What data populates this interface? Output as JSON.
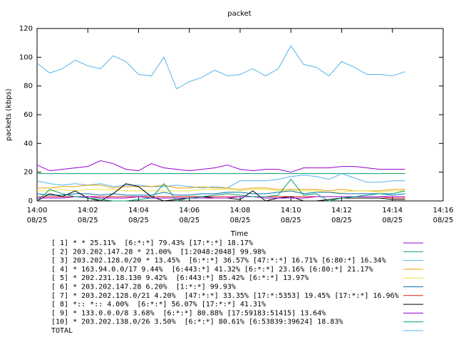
{
  "chart_data": {
    "type": "line",
    "title": "packet",
    "xlabel": "Time",
    "ylabel": "packets (kbps)",
    "x": [
      0,
      0.5,
      1,
      1.5,
      2,
      2.5,
      3,
      3.5,
      4,
      4.5,
      5,
      5.5,
      6,
      6.5,
      7,
      7.5,
      8,
      8.5,
      9,
      9.5,
      10,
      10.5,
      11,
      11.5,
      12,
      12.5,
      13,
      13.5,
      14,
      14.5
    ],
    "xlim": [
      0,
      16
    ],
    "xticks": [
      {
        "value": 0,
        "label": "14:00\n08/25"
      },
      {
        "value": 2,
        "label": "14:02\n08/25"
      },
      {
        "value": 4,
        "label": "14:04\n08/25"
      },
      {
        "value": 6,
        "label": "14:06\n08/25"
      },
      {
        "value": 8,
        "label": "14:08\n08/25"
      },
      {
        "value": 10,
        "label": "14:10\n08/25"
      },
      {
        "value": 12,
        "label": "14:12\n08/25"
      },
      {
        "value": 14,
        "label": "14:14\n08/25"
      },
      {
        "value": 16,
        "label": "14:16\n08/25"
      }
    ],
    "ylim": [
      0,
      120
    ],
    "yticks": [
      0,
      20,
      40,
      60,
      80,
      100,
      120
    ],
    "series": [
      {
        "name": "[ 1] * * 25.11%  [6:*:*] 79.43% [17:*:*] 18.17%",
        "color": "#9400d3",
        "values": [
          25,
          21,
          22,
          23,
          24,
          28,
          26,
          22,
          21,
          26,
          23,
          22,
          21,
          22,
          23,
          25,
          22,
          21,
          22,
          22,
          20,
          23,
          23,
          23,
          24,
          24,
          23,
          22,
          22,
          22
        ]
      },
      {
        "name": "[ 2] 203.202.147.28 * 21.00%  [1:2048:2048] 99.98%",
        "color": "#009e73",
        "values": [
          19,
          19,
          19,
          19,
          19,
          19,
          19,
          19,
          19,
          19,
          19,
          19,
          19,
          19,
          19,
          19,
          19,
          19,
          19,
          19,
          19,
          19,
          19,
          19,
          19,
          19,
          19,
          19,
          19,
          19
        ]
      },
      {
        "name": "[ 3] 203.202.128.0/20 * 13.45%  [6:*:*] 36.57% [47:*:*] 16.71% [6:80:*] 16.34%",
        "color": "#56b4e9",
        "values": [
          14,
          12,
          11,
          12,
          11,
          12,
          10,
          11,
          11,
          10,
          10,
          11,
          10,
          9,
          10,
          9,
          14,
          14,
          14,
          15,
          17,
          18,
          17,
          15,
          19,
          16,
          13,
          13,
          14,
          14
        ]
      },
      {
        "name": "[ 4] * 163.94.0.0/17 9.44%  [6:443:*] 41.32% [6:*:*] 23.16% [6:80:*] 21.17%",
        "color": "#e69f00",
        "values": [
          9,
          9,
          10,
          10,
          11,
          11,
          9,
          10,
          10,
          10,
          11,
          9,
          9,
          10,
          9,
          9,
          8,
          9,
          9,
          8,
          8,
          8,
          8,
          7,
          8,
          7,
          7,
          7,
          8,
          8
        ]
      },
      {
        "name": "[ 5] * 202.231.18.130 9.42%  [6:443:*] 85.42% [6:*:*] 13.97%",
        "color": "#f0e442",
        "values": [
          7,
          7,
          8,
          7,
          8,
          8,
          8,
          7,
          7,
          7,
          7,
          7,
          7,
          8,
          8,
          8,
          7,
          8,
          8,
          7,
          7,
          7,
          7,
          6,
          6,
          7,
          7,
          6,
          7,
          7
        ]
      },
      {
        "name": "[ 6] * 203.202.147.28 6.20%  [1:*:*] 99.93%",
        "color": "#0072b2",
        "values": [
          5,
          4,
          4,
          5,
          5,
          4,
          5,
          4,
          4,
          4,
          6,
          4,
          4,
          5,
          5,
          6,
          6,
          5,
          5,
          6,
          7,
          5,
          6,
          6,
          5,
          5,
          5,
          5,
          4,
          5
        ]
      },
      {
        "name": "[ 7] * 203.202.128.0/21 4.20%  [47:*:*] 33.35% [17:*:5353] 19.45% [17:*:*] 16.96%",
        "color": "#e51e10",
        "values": [
          3,
          3,
          3,
          3,
          3,
          3,
          3,
          3,
          3,
          3,
          3,
          3,
          3,
          3,
          3,
          3,
          3,
          3,
          3,
          3,
          3,
          3,
          3,
          3,
          3,
          3,
          3,
          3,
          2,
          2
        ]
      },
      {
        "name": "[ 8] *:: *:: 4.00%  [6:*:*] 56.07% [17:*:*] 41.31%",
        "color": "#000000",
        "values": [
          0,
          5,
          3,
          7,
          2,
          0,
          5,
          12,
          10,
          3,
          0,
          1,
          2,
          3,
          2,
          2,
          1,
          7,
          0,
          2,
          3,
          0,
          0,
          1,
          2,
          2,
          2,
          2,
          1,
          1
        ]
      },
      {
        "name": "[ 9] * 133.0.0.0/8 3.68%  [6:*:*] 80.88% [17:59183:51415] 13.64%",
        "color": "#9400d3",
        "values": [
          2,
          2,
          2,
          3,
          3,
          2,
          2,
          2,
          3,
          2,
          2,
          2,
          2,
          2,
          2,
          2,
          3,
          3,
          2,
          2,
          2,
          2,
          3,
          3,
          3,
          3,
          3,
          3,
          3,
          3
        ]
      },
      {
        "name": "[10] * 203.202.138.0/26 3.50%  [6:*:*] 80.61% [6:53839:39624] 18.83%",
        "color": "#009e73",
        "values": [
          0,
          8,
          5,
          3,
          2,
          1,
          0,
          0,
          1,
          2,
          12,
          0,
          2,
          3,
          4,
          5,
          4,
          3,
          3,
          4,
          15,
          4,
          5,
          0,
          2,
          3,
          4,
          5,
          5,
          7
        ]
      },
      {
        "name": "TOTAL",
        "color": "#56b4e9",
        "values": [
          96,
          89,
          92,
          98,
          94,
          92,
          101,
          97,
          88,
          87,
          100,
          78,
          83,
          86,
          91,
          87,
          88,
          92,
          87,
          92,
          108,
          95,
          93,
          87,
          97,
          93,
          88,
          88,
          87,
          90
        ]
      }
    ]
  }
}
